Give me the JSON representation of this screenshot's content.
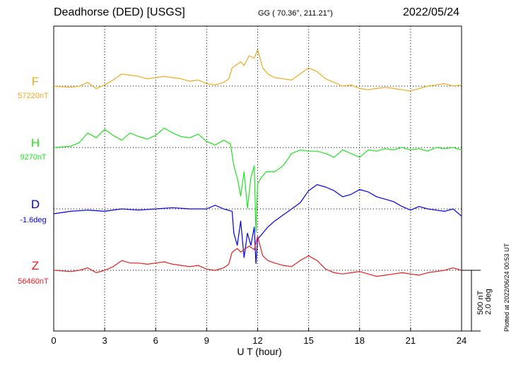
{
  "header": {
    "station": "Deadhorse (DED)  [USGS]",
    "coords": "GG ( 70.36°, 211.21°)",
    "date": "2022/05/24",
    "plotted": "Plotted at 2022/06/24 00:53 UT"
  },
  "chart_data": {
    "type": "line",
    "xlabel": "U T (hour)",
    "xlim": [
      0,
      24
    ],
    "xticks": [
      "0",
      "3",
      "6",
      "9",
      "12",
      "15",
      "18",
      "21",
      "24"
    ],
    "grid": true,
    "scale_bar": {
      "nT_label": "500 nT",
      "deg_label": "2.0 deg"
    },
    "series": [
      {
        "name": "F",
        "baseline_label": "57220nT",
        "color": "#f0aa1e",
        "x": [
          0,
          1,
          1.5,
          2,
          2.5,
          3,
          3.5,
          4,
          4.5,
          5,
          5.5,
          6,
          6.5,
          7,
          7.5,
          8,
          8.5,
          9,
          9.5,
          10,
          10.3,
          10.5,
          10.8,
          11,
          11.2,
          11.5,
          11.8,
          12,
          12.3,
          12.6,
          13,
          13.5,
          14,
          14.5,
          15,
          15.5,
          16,
          16.5,
          17,
          17.5,
          18,
          18.5,
          19,
          19.5,
          20,
          20.5,
          21,
          21.5,
          22,
          22.5,
          23,
          23.5,
          24
        ],
        "y": [
          0,
          -10,
          0,
          30,
          -20,
          10,
          50,
          100,
          90,
          80,
          60,
          70,
          80,
          70,
          60,
          40,
          50,
          20,
          10,
          30,
          60,
          150,
          180,
          200,
          170,
          250,
          230,
          300,
          150,
          100,
          70,
          60,
          50,
          100,
          150,
          120,
          60,
          30,
          0,
          10,
          -20,
          -30,
          -20,
          -10,
          -20,
          -30,
          -40,
          -20,
          0,
          10,
          20,
          0,
          10
        ]
      },
      {
        "name": "H",
        "baseline_label": "9270nT",
        "color": "#1ee61e",
        "x": [
          0,
          1,
          1.5,
          2,
          2.5,
          3,
          3.5,
          4,
          4.5,
          5,
          5.5,
          6,
          6.5,
          7,
          7.5,
          8,
          8.5,
          9,
          9.5,
          10,
          10.4,
          10.6,
          10.8,
          11,
          11.2,
          11.4,
          11.6,
          11.8,
          11.9,
          12,
          12.2,
          12.5,
          13,
          13.5,
          14,
          14.5,
          15,
          15.5,
          16,
          16.5,
          17,
          17.5,
          18,
          18.5,
          19,
          19.5,
          20,
          20.5,
          21,
          21.5,
          22,
          22.5,
          23,
          23.5,
          24
        ],
        "y": [
          0,
          10,
          40,
          120,
          80,
          150,
          100,
          60,
          120,
          90,
          70,
          100,
          160,
          120,
          90,
          80,
          110,
          50,
          20,
          60,
          30,
          -150,
          -250,
          -400,
          -200,
          -500,
          -250,
          -150,
          -700,
          -300,
          -250,
          -200,
          -200,
          -150,
          -50,
          -20,
          -30,
          -30,
          -50,
          -80,
          -20,
          -50,
          -80,
          -20,
          -30,
          -10,
          -20,
          0,
          -20,
          -10,
          -30,
          0,
          -10,
          0,
          -20
        ]
      },
      {
        "name": "D",
        "baseline_label": "-1.6deg",
        "color": "#0000e6",
        "x": [
          0,
          1,
          2,
          3,
          4,
          5,
          6,
          7,
          8,
          9,
          9.5,
          10,
          10.5,
          10.6,
          10.8,
          11,
          11.2,
          11.4,
          11.6,
          11.8,
          11.9,
          12,
          12.3,
          12.6,
          13,
          13.5,
          14,
          14.5,
          15,
          15.5,
          16,
          16.5,
          17,
          17.5,
          18,
          18.5,
          19,
          19.5,
          20,
          20.5,
          21,
          21.5,
          22,
          22.5,
          23,
          23.5,
          24
        ],
        "y": [
          -40,
          -20,
          -10,
          -20,
          0,
          -10,
          0,
          10,
          0,
          0,
          30,
          0,
          -20,
          -200,
          -300,
          -100,
          -400,
          -200,
          -300,
          -150,
          -450,
          -250,
          -200,
          -150,
          -100,
          -50,
          0,
          50,
          150,
          200,
          180,
          150,
          100,
          120,
          160,
          140,
          100,
          80,
          60,
          20,
          -10,
          20,
          0,
          -10,
          -20,
          0,
          -60
        ]
      },
      {
        "name": "Z",
        "baseline_label": "56460nT",
        "color": "#e61e1e",
        "x": [
          0,
          1,
          1.5,
          2,
          2.5,
          3,
          3.5,
          4,
          4.5,
          5,
          5.5,
          6,
          6.5,
          7,
          7.5,
          8,
          8.5,
          9,
          9.5,
          10,
          10.3,
          10.5,
          10.8,
          11,
          11.2,
          11.5,
          11.8,
          12,
          12.3,
          12.6,
          13,
          13.5,
          14,
          14.5,
          15,
          15.5,
          16,
          16.5,
          17,
          17.5,
          18,
          18.5,
          19,
          19.5,
          20,
          20.5,
          21,
          21.5,
          22,
          22.5,
          23,
          23.5,
          24
        ],
        "y": [
          0,
          -10,
          0,
          20,
          -20,
          0,
          30,
          80,
          60,
          60,
          50,
          60,
          70,
          50,
          40,
          30,
          40,
          10,
          0,
          20,
          50,
          150,
          180,
          150,
          170,
          200,
          170,
          280,
          120,
          80,
          60,
          40,
          30,
          80,
          120,
          80,
          10,
          -20,
          -30,
          -20,
          -10,
          -30,
          -50,
          -40,
          -30,
          -20,
          -30,
          -40,
          -20,
          -10,
          0,
          20,
          0
        ]
      }
    ]
  }
}
